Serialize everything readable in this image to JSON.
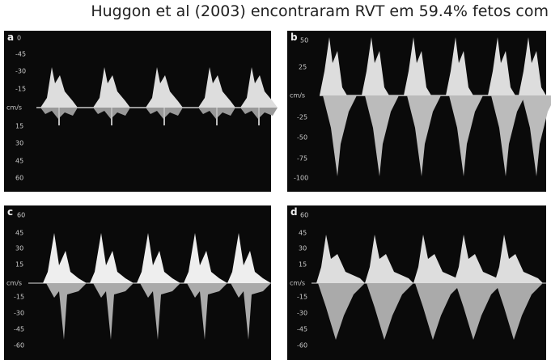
{
  "caption": "Huggon et al (2003) encontraram RVT em 59.4% fetos com",
  "panels": [
    {
      "label": "a",
      "ticks": [
        "0",
        "-45",
        "-30",
        "-15",
        "cm/s",
        "15",
        "30",
        "45",
        "60"
      ]
    },
    {
      "label": "b",
      "ticks": [
        "50",
        "25",
        "cm/s",
        "-25",
        "-50",
        "-75",
        "-100"
      ]
    },
    {
      "label": "c",
      "ticks": [
        "60",
        "45",
        "30",
        "15",
        "cm/s",
        "-15",
        "-30",
        "-45",
        "-60"
      ]
    },
    {
      "label": "d",
      "ticks": [
        "60",
        "45",
        "30",
        "15",
        "cm/s",
        "-15",
        "-30",
        "-45",
        "-60"
      ]
    }
  ]
}
